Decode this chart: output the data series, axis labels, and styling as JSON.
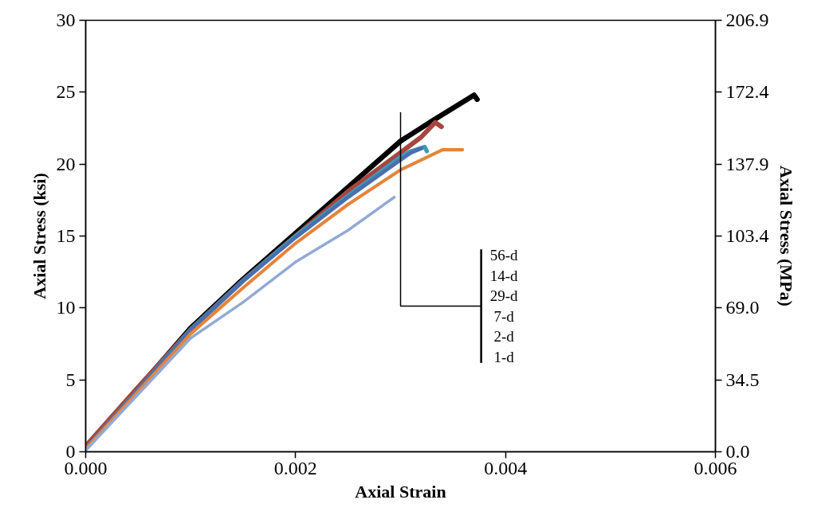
{
  "chart_data": {
    "type": "line",
    "xlabel": "Axial Strain",
    "ylabel": "Axial Stress (ksi)",
    "y2label": "Axial Stress (MPa)",
    "xlim": [
      0,
      0.006
    ],
    "xticks": [
      {
        "value": 0,
        "label": "0.000"
      },
      {
        "value": 0.002,
        "label": "0.002"
      },
      {
        "value": 0.004,
        "label": "0.004"
      },
      {
        "value": 0.006,
        "label": "0.006"
      }
    ],
    "ylim": [
      0,
      30
    ],
    "yticks": [
      0,
      5,
      10,
      15,
      20,
      25,
      30
    ],
    "y2lim": [
      0,
      206.9
    ],
    "y2ticks": [
      {
        "value": 0,
        "label": "0.0"
      },
      34.5,
      {
        "value": 69,
        "label": "69.0"
      },
      103.4,
      137.9,
      172.4,
      206.9
    ],
    "grid": false,
    "marker": "none",
    "line_style": "solid",
    "annotations": [
      "56-d",
      "14-d",
      "29-d",
      "7-d",
      "2-d",
      "1-d"
    ],
    "series": [
      {
        "color": "#000000",
        "x": [
          0,
          0.0005,
          0.001,
          0.0015,
          0.002,
          0.0025,
          0.003,
          0.0033,
          0.0035,
          0.0037,
          0.00373
        ],
        "values": [
          0.3,
          4.4,
          8.6,
          12.0,
          15.2,
          18.4,
          21.6,
          23.0,
          23.9,
          24.8,
          24.5
        ]
      },
      {
        "color": "#a9443f",
        "x": [
          0,
          0.0005,
          0.001,
          0.0015,
          0.002,
          0.0025,
          0.003,
          0.0032,
          0.00333,
          0.00339
        ],
        "values": [
          0.4,
          4.5,
          8.5,
          11.9,
          15.0,
          18.1,
          20.8,
          21.9,
          22.9,
          22.6
        ]
      },
      {
        "color": "#3d9bb0",
        "x": [
          0,
          0.0005,
          0.001,
          0.0015,
          0.002,
          0.0025,
          0.003,
          0.0031,
          0.00323,
          0.00325
        ],
        "values": [
          0.2,
          4.3,
          8.5,
          11.9,
          15.0,
          17.8,
          20.5,
          20.9,
          21.2,
          20.9
        ]
      },
      {
        "color": "#4a6fb0",
        "x": [
          0,
          0.0005,
          0.001,
          0.0015,
          0.002,
          0.0025,
          0.003,
          0.0031,
          0.0032
        ],
        "values": [
          0.2,
          4.3,
          8.5,
          11.9,
          14.9,
          17.7,
          20.3,
          20.8,
          21.1
        ]
      },
      {
        "color": "#e5843a",
        "x": [
          0,
          0.0005,
          0.001,
          0.0015,
          0.002,
          0.0025,
          0.003,
          0.0034,
          0.00359
        ],
        "values": [
          0.2,
          4.2,
          8.2,
          11.4,
          14.5,
          17.2,
          19.6,
          21.0,
          21.0
        ]
      },
      {
        "color": "#93a9d4",
        "x": [
          0,
          0.0005,
          0.001,
          0.0015,
          0.002,
          0.0025,
          0.00294
        ],
        "values": [
          0.1,
          4.0,
          7.9,
          10.4,
          13.2,
          15.4,
          17.7
        ]
      }
    ]
  }
}
